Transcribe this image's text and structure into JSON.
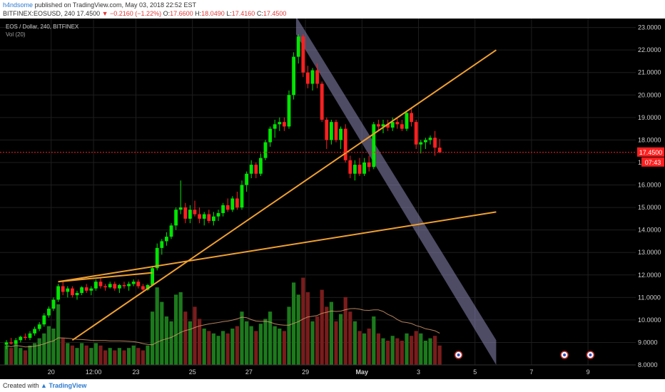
{
  "header": {
    "author": "h4ndsome",
    "published": "published on TradingView.com, May 03, 2018 22:52 EST",
    "symbol_tf": "BITFINEX:EOSUSD, 240",
    "last": "17.4500",
    "change": "▼ −0.2160 (−1.22%)",
    "o_label": "O:",
    "o": "17.6600",
    "h_label": "H:",
    "h": "18.0490",
    "l_label": "L:",
    "l": "17.4160",
    "c_label": "C:",
    "c": "17.4500"
  },
  "legend": {
    "pair": "EOS / Dollar, 240, BITFINEX",
    "vol": "Vol (20)"
  },
  "footer": {
    "created_with": "Created with",
    "brand": "TradingView"
  },
  "colors": {
    "background": "#000000",
    "up": "#00e600",
    "down": "#ff2020",
    "up_vol": "#1c7a1c",
    "down_vol": "#7a1c1c",
    "trendline": "#f0a030",
    "channel": "#8e88b8",
    "price_line": "#ff2020",
    "axis_text": "#d0d0d0"
  },
  "chart_data": {
    "type": "candlestick",
    "title": "EOS / Dollar, 240, BITFINEX",
    "y_ticks": [
      "23.0000",
      "22.0000",
      "21.0000",
      "20.0000",
      "19.0000",
      "18.0000",
      "17.0000",
      "16.0000",
      "15.0000",
      "14.0000",
      "13.0000",
      "12.0000",
      "11.0000",
      "10.0000",
      "9.0000",
      "8.0000"
    ],
    "y_range": [
      8.0,
      23.4
    ],
    "x_ticks": [
      "20",
      "12:00",
      "23",
      "25",
      "27",
      "29",
      "May",
      "3",
      "5",
      "7",
      "9"
    ],
    "last_price_label": "17.4500",
    "countdown_label": "07:43",
    "last_price": 17.45,
    "bar_step_days": 0.1667,
    "candles": [
      [
        8.9,
        9.1,
        8.7,
        9.0
      ],
      [
        9.0,
        9.2,
        8.9,
        8.95
      ],
      [
        8.95,
        9.2,
        8.9,
        9.1
      ],
      [
        9.1,
        9.3,
        9.0,
        9.25
      ],
      [
        9.25,
        9.4,
        9.1,
        9.2
      ],
      [
        9.2,
        9.5,
        9.1,
        9.4
      ],
      [
        9.4,
        9.7,
        9.3,
        9.6
      ],
      [
        9.6,
        9.9,
        9.5,
        9.8
      ],
      [
        9.8,
        10.3,
        9.7,
        10.2
      ],
      [
        10.2,
        10.6,
        10.1,
        10.5
      ],
      [
        10.5,
        11.0,
        10.4,
        10.9
      ],
      [
        10.9,
        11.6,
        10.8,
        11.5
      ],
      [
        11.5,
        11.7,
        11.1,
        11.25
      ],
      [
        11.25,
        11.5,
        11.0,
        11.4
      ],
      [
        11.4,
        11.5,
        11.0,
        11.1
      ],
      [
        11.1,
        11.3,
        10.9,
        11.2
      ],
      [
        11.2,
        11.5,
        11.1,
        11.45
      ],
      [
        11.45,
        11.6,
        11.2,
        11.3
      ],
      [
        11.3,
        11.5,
        11.1,
        11.4
      ],
      [
        11.4,
        11.8,
        11.3,
        11.7
      ],
      [
        11.7,
        11.9,
        11.4,
        11.5
      ],
      [
        11.5,
        11.6,
        11.3,
        11.45
      ],
      [
        11.45,
        11.7,
        11.4,
        11.6
      ],
      [
        11.6,
        11.7,
        11.3,
        11.4
      ],
      [
        11.4,
        11.6,
        11.2,
        11.55
      ],
      [
        11.55,
        11.7,
        11.4,
        11.5
      ],
      [
        11.5,
        11.7,
        11.3,
        11.6
      ],
      [
        11.6,
        11.8,
        11.5,
        11.7
      ],
      [
        11.7,
        11.8,
        11.4,
        11.5
      ],
      [
        11.5,
        11.6,
        11.3,
        11.35
      ],
      [
        11.35,
        11.6,
        11.3,
        11.55
      ],
      [
        11.55,
        12.4,
        11.5,
        12.3
      ],
      [
        12.3,
        13.4,
        12.2,
        13.2
      ],
      [
        13.2,
        13.6,
        12.9,
        13.5
      ],
      [
        13.5,
        13.9,
        13.3,
        13.7
      ],
      [
        13.7,
        14.3,
        13.6,
        14.2
      ],
      [
        14.2,
        15.0,
        14.0,
        14.9
      ],
      [
        14.9,
        16.2,
        14.7,
        15.0
      ],
      [
        15.0,
        15.2,
        14.3,
        14.5
      ],
      [
        14.5,
        15.1,
        14.3,
        14.9
      ],
      [
        14.9,
        15.3,
        14.6,
        14.7
      ],
      [
        14.7,
        15.0,
        14.3,
        14.5
      ],
      [
        14.5,
        14.8,
        14.2,
        14.7
      ],
      [
        14.7,
        14.9,
        14.3,
        14.4
      ],
      [
        14.4,
        14.8,
        14.2,
        14.6
      ],
      [
        14.6,
        14.9,
        14.4,
        14.75
      ],
      [
        14.75,
        15.2,
        14.6,
        15.1
      ],
      [
        15.1,
        15.4,
        14.8,
        14.9
      ],
      [
        14.9,
        15.5,
        14.8,
        15.4
      ],
      [
        15.4,
        15.7,
        14.9,
        15.0
      ],
      [
        15.0,
        16.2,
        14.9,
        16.0
      ],
      [
        16.0,
        16.6,
        15.7,
        16.5
      ],
      [
        16.5,
        17.1,
        16.3,
        16.9
      ],
      [
        16.9,
        17.0,
        16.3,
        16.5
      ],
      [
        16.5,
        17.4,
        16.4,
        17.2
      ],
      [
        17.2,
        18.0,
        17.1,
        17.9
      ],
      [
        17.9,
        18.6,
        17.7,
        18.5
      ],
      [
        18.5,
        18.9,
        18.1,
        18.7
      ],
      [
        18.7,
        19.0,
        18.4,
        18.8
      ],
      [
        18.8,
        19.0,
        18.4,
        18.6
      ],
      [
        18.6,
        20.2,
        18.5,
        20.0
      ],
      [
        20.0,
        21.9,
        19.8,
        21.7
      ],
      [
        21.7,
        22.7,
        21.4,
        22.6
      ],
      [
        22.6,
        22.7,
        20.8,
        21.0
      ],
      [
        21.0,
        21.3,
        20.3,
        20.5
      ],
      [
        20.5,
        21.2,
        20.2,
        21.1
      ],
      [
        21.1,
        21.4,
        20.3,
        20.5
      ],
      [
        20.5,
        20.6,
        18.8,
        18.9
      ],
      [
        18.9,
        19.0,
        17.6,
        18.0
      ],
      [
        18.0,
        18.9,
        17.8,
        18.8
      ],
      [
        18.8,
        18.9,
        17.9,
        18.0
      ],
      [
        18.0,
        18.6,
        17.6,
        18.5
      ],
      [
        18.5,
        18.7,
        17.0,
        17.1
      ],
      [
        17.1,
        17.3,
        16.3,
        16.5
      ],
      [
        16.5,
        17.1,
        16.2,
        16.9
      ],
      [
        16.9,
        17.2,
        16.4,
        16.5
      ],
      [
        16.5,
        17.2,
        16.4,
        17.0
      ],
      [
        17.0,
        17.3,
        16.6,
        16.8
      ],
      [
        16.8,
        18.8,
        16.7,
        18.7
      ],
      [
        18.7,
        18.9,
        18.4,
        18.6
      ],
      [
        18.6,
        18.9,
        18.3,
        18.7
      ],
      [
        18.7,
        18.9,
        18.4,
        18.55
      ],
      [
        18.55,
        19.0,
        18.4,
        18.8
      ],
      [
        18.8,
        19.0,
        18.5,
        18.7
      ],
      [
        18.7,
        18.9,
        18.4,
        18.5
      ],
      [
        18.5,
        19.3,
        18.4,
        19.2
      ],
      [
        19.2,
        19.4,
        18.6,
        18.8
      ],
      [
        18.8,
        18.9,
        17.6,
        17.8
      ],
      [
        17.8,
        18.0,
        17.4,
        17.9
      ],
      [
        17.9,
        18.1,
        17.6,
        18.0
      ],
      [
        18.0,
        18.2,
        17.8,
        18.1
      ],
      [
        18.1,
        18.4,
        17.3,
        17.66
      ],
      [
        17.66,
        18.05,
        17.42,
        17.45
      ]
    ],
    "volumes": [
      0.8,
      0.7,
      0.9,
      0.7,
      0.6,
      0.8,
      0.9,
      1.1,
      1.3,
      1.6,
      1.5,
      2.5,
      1.1,
      0.9,
      0.8,
      0.7,
      0.9,
      0.8,
      0.7,
      0.9,
      0.8,
      0.6,
      0.7,
      0.6,
      0.7,
      0.6,
      0.7,
      0.8,
      0.7,
      0.6,
      0.8,
      2.2,
      3.2,
      2.6,
      2.0,
      1.8,
      2.9,
      3.0,
      2.2,
      1.8,
      2.4,
      1.9,
      1.5,
      1.4,
      1.3,
      1.2,
      1.4,
      1.3,
      1.5,
      1.6,
      2.2,
      1.8,
      1.6,
      1.4,
      1.7,
      1.9,
      2.2,
      1.6,
      1.5,
      1.4,
      2.4,
      3.4,
      2.9,
      3.6,
      3.0,
      1.8,
      2.0,
      3.1,
      2.4,
      2.6,
      1.8,
      2.1,
      2.8,
      2.2,
      1.8,
      1.4,
      1.3,
      1.5,
      2.0,
      1.3,
      1.1,
      1.0,
      1.2,
      1.1,
      1.0,
      1.3,
      1.2,
      1.4,
      1.3,
      1.0,
      1.1,
      1.2,
      0.8
    ],
    "trendlines": [
      {
        "kind": "line",
        "from": [
          14,
          9.1
        ],
        "to": [
          104,
          22.0
        ]
      },
      {
        "kind": "line",
        "from": [
          11,
          11.7
        ],
        "to": [
          104,
          14.8
        ]
      },
      {
        "kind": "segment",
        "from": [
          11,
          11.7
        ],
        "to": [
          31,
          12.1
        ]
      }
    ],
    "channel": {
      "upper_from": [
        61.5,
        23.5
      ],
      "upper_to": [
        104,
        9.1
      ],
      "lower_from": [
        61.5,
        22.7
      ],
      "lower_to": [
        104,
        8.0
      ]
    }
  }
}
